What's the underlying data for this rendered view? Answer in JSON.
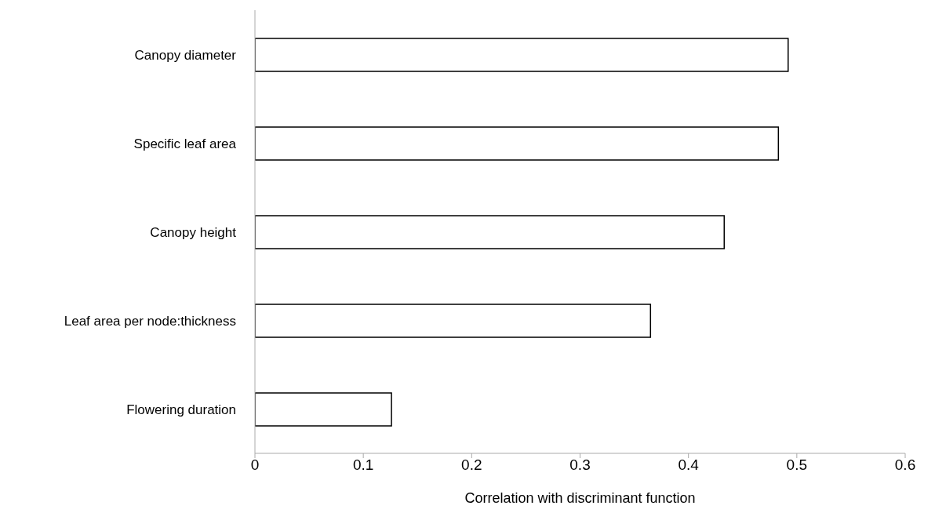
{
  "chart_data": {
    "type": "bar",
    "orientation": "horizontal",
    "xlabel": "Correlation with discriminant function",
    "categories": [
      "Canopy diameter",
      "Specific leaf area",
      "Canopy height",
      "Leaf area per node:thickness",
      "Flowering duration"
    ],
    "values": [
      0.492,
      0.483,
      0.433,
      0.365,
      0.126
    ],
    "color": "#ffffff",
    "xlim": [
      0,
      0.6
    ],
    "xticks": [
      0,
      0.1,
      0.2,
      0.3,
      0.4,
      0.5,
      0.6
    ],
    "grid": false,
    "legend": false
  }
}
